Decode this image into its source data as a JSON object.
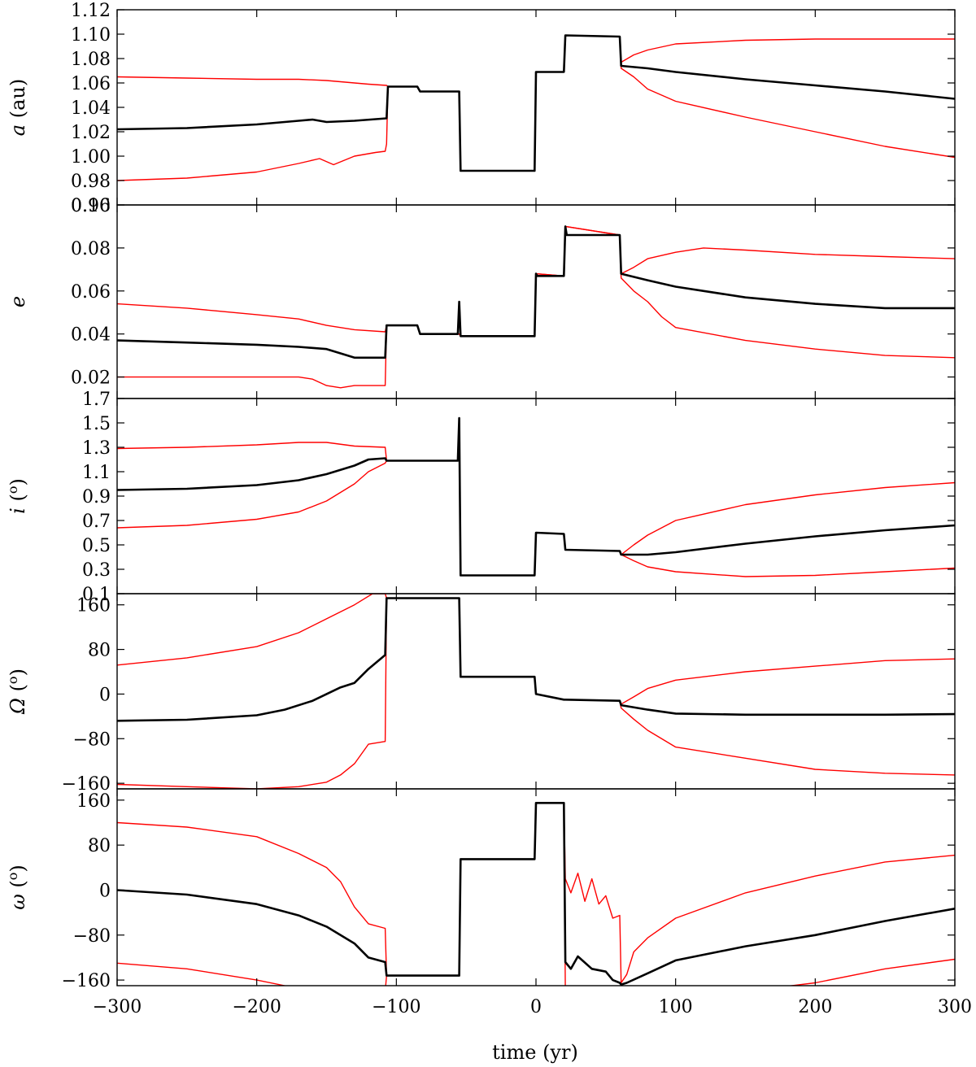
{
  "chart_data": [
    {
      "type": "line",
      "ylabel_symbol": "a",
      "ylabel_unit": " (au)",
      "ylim": [
        0.96,
        1.12
      ],
      "yticks": [
        "0.96",
        "0.98",
        "1.00",
        "1.02",
        "1.04",
        "1.06",
        "1.08",
        "1.10",
        "1.12"
      ],
      "yticks_values": [
        0.96,
        0.98,
        1.0,
        1.02,
        1.04,
        1.06,
        1.08,
        1.1,
        1.12
      ],
      "series": [
        {
          "role": "nominal",
          "color": "#000000",
          "x": [
            -300,
            -250,
            -200,
            -170,
            -160,
            -150,
            -130,
            -107,
            -106,
            -85,
            -83,
            -55,
            -54,
            -1,
            0,
            20,
            21,
            60,
            61,
            80,
            100,
            150,
            200,
            250,
            300
          ],
          "y": [
            1.022,
            1.023,
            1.026,
            1.029,
            1.03,
            1.028,
            1.029,
            1.031,
            1.057,
            1.057,
            1.053,
            1.053,
            0.988,
            0.988,
            1.069,
            1.069,
            1.099,
            1.098,
            1.074,
            1.072,
            1.069,
            1.063,
            1.058,
            1.053,
            1.047
          ]
        },
        {
          "role": "upper",
          "color": "#ff0000",
          "x": [
            -300,
            -250,
            -200,
            -170,
            -150,
            -120,
            -107,
            -106,
            -85,
            -83,
            -55,
            -54,
            -1,
            0,
            20,
            21,
            60,
            61,
            70,
            80,
            100,
            150,
            200,
            250,
            300
          ],
          "y": [
            1.065,
            1.064,
            1.063,
            1.063,
            1.062,
            1.059,
            1.058,
            1.057,
            1.057,
            1.053,
            1.053,
            0.988,
            0.988,
            1.069,
            1.069,
            1.099,
            1.098,
            1.077,
            1.083,
            1.087,
            1.092,
            1.095,
            1.096,
            1.096,
            1.096
          ]
        },
        {
          "role": "lower",
          "color": "#ff0000",
          "x": [
            -300,
            -250,
            -200,
            -170,
            -155,
            -145,
            -130,
            -115,
            -108,
            -107,
            -106,
            -85,
            -83,
            -55,
            -54,
            -1,
            0,
            20,
            21,
            60,
            61,
            70,
            80,
            100,
            150,
            200,
            250,
            300
          ],
          "y": [
            0.98,
            0.982,
            0.987,
            0.994,
            0.998,
            0.993,
            1.0,
            1.003,
            1.004,
            1.01,
            1.057,
            1.057,
            1.053,
            1.053,
            0.988,
            0.988,
            1.069,
            1.069,
            1.099,
            1.098,
            1.072,
            1.065,
            1.055,
            1.045,
            1.032,
            1.02,
            1.008,
            0.999
          ]
        }
      ]
    },
    {
      "type": "line",
      "ylabel_symbol": "e",
      "ylabel_unit": "",
      "ylim": [
        0.01,
        0.1
      ],
      "yticks": [
        "0.02",
        "0.04",
        "0.06",
        "0.08",
        "0.10"
      ],
      "yticks_values": [
        0.02,
        0.04,
        0.06,
        0.08,
        0.1
      ],
      "series": [
        {
          "role": "nominal",
          "color": "#000000",
          "x": [
            -300,
            -250,
            -200,
            -170,
            -150,
            -140,
            -130,
            -108,
            -107,
            -85,
            -83,
            -56,
            -55,
            -54,
            -1,
            0,
            1,
            20,
            21,
            22,
            60,
            61,
            80,
            100,
            150,
            200,
            250,
            300
          ],
          "y": [
            0.037,
            0.036,
            0.035,
            0.034,
            0.033,
            0.031,
            0.029,
            0.029,
            0.044,
            0.044,
            0.04,
            0.04,
            0.055,
            0.039,
            0.039,
            0.068,
            0.067,
            0.067,
            0.09,
            0.086,
            0.086,
            0.068,
            0.065,
            0.062,
            0.057,
            0.054,
            0.052,
            0.052
          ]
        },
        {
          "role": "upper",
          "color": "#ff0000",
          "x": [
            -300,
            -250,
            -200,
            -170,
            -150,
            -130,
            -108,
            -107,
            -85,
            -83,
            -55,
            -54,
            -1,
            0,
            20,
            21,
            60,
            61,
            70,
            80,
            100,
            120,
            150,
            200,
            250,
            300
          ],
          "y": [
            0.054,
            0.052,
            0.049,
            0.047,
            0.044,
            0.042,
            0.041,
            0.044,
            0.044,
            0.04,
            0.04,
            0.039,
            0.039,
            0.068,
            0.067,
            0.09,
            0.086,
            0.068,
            0.071,
            0.075,
            0.078,
            0.08,
            0.079,
            0.077,
            0.076,
            0.075
          ]
        },
        {
          "role": "lower",
          "color": "#ff0000",
          "x": [
            -300,
            -250,
            -200,
            -170,
            -160,
            -150,
            -140,
            -130,
            -108,
            -107,
            -85,
            -83,
            -55,
            -54,
            -1,
            0,
            20,
            21,
            60,
            61,
            70,
            80,
            90,
            100,
            150,
            200,
            250,
            300
          ],
          "y": [
            0.02,
            0.02,
            0.02,
            0.02,
            0.019,
            0.016,
            0.015,
            0.016,
            0.016,
            0.044,
            0.044,
            0.04,
            0.04,
            0.039,
            0.039,
            0.068,
            0.067,
            0.09,
            0.086,
            0.066,
            0.06,
            0.055,
            0.048,
            0.043,
            0.037,
            0.033,
            0.03,
            0.029
          ]
        }
      ]
    },
    {
      "type": "line",
      "ylabel_symbol": "i",
      "ylabel_unit": " (o)",
      "ylim": [
        0.1,
        1.7
      ],
      "yticks": [
        "0.1",
        "0.3",
        "0.5",
        "0.7",
        "0.9",
        "1.1",
        "1.3",
        "1.5",
        "1.7"
      ],
      "yticks_values": [
        0.1,
        0.3,
        0.5,
        0.7,
        0.9,
        1.1,
        1.3,
        1.5,
        1.7
      ],
      "series": [
        {
          "role": "nominal",
          "color": "#000000",
          "x": [
            -300,
            -250,
            -200,
            -170,
            -150,
            -130,
            -120,
            -108,
            -107,
            -56,
            -55,
            -54,
            -1,
            0,
            20,
            21,
            60,
            61,
            80,
            100,
            150,
            200,
            250,
            300
          ],
          "y": [
            0.95,
            0.96,
            0.99,
            1.03,
            1.08,
            1.15,
            1.2,
            1.21,
            1.19,
            1.19,
            1.54,
            0.25,
            0.25,
            0.6,
            0.59,
            0.46,
            0.45,
            0.42,
            0.42,
            0.44,
            0.51,
            0.57,
            0.62,
            0.66
          ]
        },
        {
          "role": "upper",
          "color": "#ff0000",
          "x": [
            -300,
            -250,
            -200,
            -170,
            -150,
            -130,
            -108,
            -107,
            -56,
            -55,
            -54,
            -1,
            0,
            20,
            21,
            60,
            61,
            70,
            80,
            100,
            150,
            200,
            250,
            300
          ],
          "y": [
            1.29,
            1.3,
            1.32,
            1.34,
            1.34,
            1.31,
            1.3,
            1.19,
            1.19,
            1.54,
            0.25,
            0.25,
            0.6,
            0.59,
            0.46,
            0.45,
            0.42,
            0.5,
            0.58,
            0.7,
            0.83,
            0.91,
            0.97,
            1.01
          ]
        },
        {
          "role": "lower",
          "color": "#ff0000",
          "x": [
            -300,
            -250,
            -200,
            -170,
            -150,
            -130,
            -120,
            -108,
            -107,
            -56,
            -55,
            -54,
            -1,
            0,
            20,
            21,
            60,
            61,
            70,
            80,
            100,
            150,
            200,
            250,
            300
          ],
          "y": [
            0.64,
            0.66,
            0.71,
            0.77,
            0.86,
            1.0,
            1.1,
            1.17,
            1.19,
            1.19,
            1.54,
            0.25,
            0.25,
            0.6,
            0.59,
            0.46,
            0.45,
            0.42,
            0.37,
            0.32,
            0.28,
            0.24,
            0.25,
            0.28,
            0.31
          ]
        }
      ]
    },
    {
      "type": "line",
      "ylabel_symbol": "Ω",
      "ylabel_unit": " (o)",
      "ylim": [
        -170,
        180
      ],
      "yticks": [
        "−160",
        "−80",
        "0",
        "80",
        "160"
      ],
      "yticks_values": [
        -160,
        -80,
        0,
        80,
        160
      ],
      "series": [
        {
          "role": "nominal",
          "color": "#000000",
          "x": [
            -300,
            -250,
            -200,
            -180,
            -160,
            -150,
            -140,
            -130,
            -120,
            -108,
            -107,
            -55,
            -54,
            -1,
            0,
            20,
            21,
            60,
            61,
            80,
            100,
            150,
            200,
            250,
            300
          ],
          "y": [
            -48,
            -46,
            -38,
            -28,
            -12,
            0,
            12,
            20,
            45,
            70,
            172,
            172,
            31,
            31,
            0,
            -10,
            -10,
            -12,
            -20,
            -28,
            -35,
            -37,
            -37,
            -37,
            -36
          ]
        },
        {
          "role": "upper",
          "color": "#ff0000",
          "x": [
            -300,
            -250,
            -200,
            -170,
            -150,
            -130,
            -117,
            -108,
            -107,
            -55,
            -54,
            -1,
            0,
            20,
            21,
            60,
            61,
            70,
            80,
            100,
            150,
            200,
            250,
            300
          ],
          "y": [
            52,
            65,
            85,
            110,
            135,
            160,
            180,
            180,
            172,
            172,
            31,
            31,
            0,
            -10,
            -10,
            -12,
            -18,
            -5,
            10,
            25,
            40,
            50,
            60,
            63
          ]
        },
        {
          "role": "lower",
          "color": "#ff0000",
          "x": [
            -300,
            -250,
            -200,
            -170,
            -150,
            -140,
            -130,
            -120,
            -108,
            -107,
            -55,
            -54,
            -1,
            0,
            20,
            21,
            60,
            61,
            70,
            80,
            100,
            150,
            200,
            250,
            300
          ],
          "y": [
            -162,
            -166,
            -170,
            -166,
            -158,
            -145,
            -125,
            -90,
            -85,
            172,
            172,
            31,
            31,
            0,
            -10,
            -10,
            -12,
            -25,
            -45,
            -65,
            -95,
            -115,
            -135,
            -142,
            -145
          ]
        }
      ]
    },
    {
      "type": "line",
      "ylabel_symbol": "ω",
      "ylabel_unit": " (o)",
      "ylim": [
        -170,
        180
      ],
      "yticks": [
        "−160",
        "80",
        "0",
        "−80",
        "160"
      ],
      "yticks_values": [
        -160,
        80,
        0,
        -80,
        160
      ],
      "series": [
        {
          "role": "nominal",
          "color": "#000000",
          "x": [
            -300,
            -250,
            -200,
            -170,
            -150,
            -130,
            -120,
            -108,
            -107,
            -55,
            -54,
            -1,
            0,
            20,
            21,
            25,
            30,
            40,
            50,
            55,
            60,
            61,
            65,
            80,
            100,
            150,
            200,
            250,
            300
          ],
          "y": [
            0,
            -8,
            -25,
            -45,
            -65,
            -95,
            -120,
            -128,
            -152,
            -152,
            55,
            55,
            155,
            155,
            -128,
            -140,
            -118,
            -140,
            -145,
            -160,
            -165,
            -168,
            -165,
            -148,
            -125,
            -100,
            -80,
            -55,
            -33
          ]
        },
        {
          "role": "upper",
          "color": "#ff0000",
          "x": [
            -300,
            -250,
            -200,
            -170,
            -150,
            -140,
            -130,
            -120,
            -108,
            -107,
            -55,
            -54,
            -1,
            0,
            20,
            21,
            25,
            30,
            35,
            40,
            45,
            50,
            55,
            60,
            61,
            65,
            70,
            80,
            100,
            150,
            200,
            250,
            300
          ],
          "y": [
            120,
            112,
            95,
            65,
            40,
            15,
            -30,
            -60,
            -68,
            -152,
            -152,
            55,
            55,
            155,
            155,
            20,
            -5,
            30,
            -20,
            20,
            -25,
            -10,
            -50,
            -45,
            -165,
            -150,
            -110,
            -85,
            -50,
            -5,
            25,
            50,
            62
          ]
        },
        {
          "role": "lower",
          "color": "#ff0000",
          "x": [
            -300,
            -250,
            -200,
            -180,
            -170,
            -150,
            -140,
            -130,
            -120,
            -110,
            -108,
            -107,
            -55,
            -54,
            -1,
            0,
            20,
            21,
            60,
            61,
            70,
            80,
            100,
            150,
            200,
            250,
            300
          ],
          "y": [
            -130,
            -140,
            -160,
            -170,
            -180,
            -180,
            -180,
            -180,
            -180,
            -180,
            -180,
            -152,
            -152,
            55,
            55,
            155,
            155,
            -180,
            -180,
            -180,
            -180,
            -180,
            -180,
            -180,
            -165,
            -140,
            -123
          ]
        }
      ]
    }
  ],
  "x_axis": {
    "xlim": [
      -300,
      300
    ],
    "xticks": [
      "−300",
      "−200",
      "−100",
      "0",
      "100",
      "200",
      "300"
    ],
    "xticks_values": [
      -300,
      -200,
      -100,
      0,
      100,
      200,
      300
    ],
    "xlabel": "time (yr)"
  },
  "colors": {
    "nominal": "#000000",
    "clones": "#ff0000",
    "axes": "#000000",
    "background": "#ffffff"
  }
}
